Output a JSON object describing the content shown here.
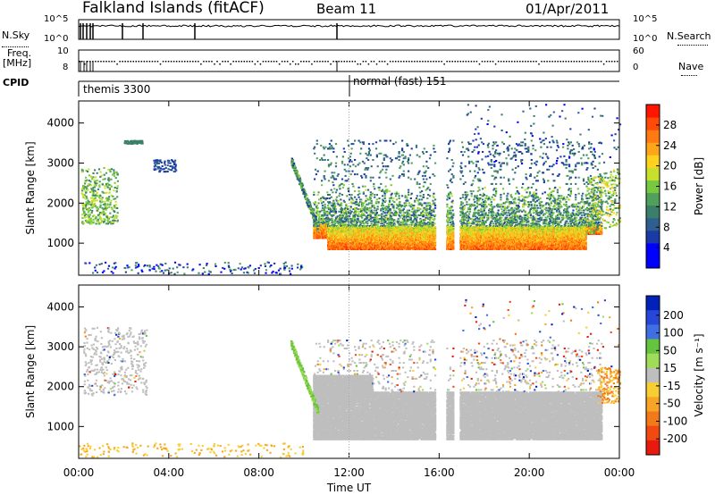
{
  "header": {
    "site": "Falkland Islands (fitACF)",
    "beam": "Beam 11",
    "date": "01/Apr/2011"
  },
  "left_labels": {
    "nsky": "N.Sky",
    "freq": "Freq.",
    "freq_unit": "[MHz]",
    "cpid": "CPID"
  },
  "right_labels": {
    "nsearch": "N.Search",
    "nave": "Nave"
  },
  "noise_axis": {
    "top": "10^5",
    "bottom": "10^0"
  },
  "freq_axis": {
    "top": "10",
    "bottom": "8"
  },
  "nave_axis": {
    "top": "60",
    "bottom": "0"
  },
  "cpid_labels": [
    "themis 3300",
    "normal (fast) 151"
  ],
  "colors": {
    "power": [
      "#0000ff",
      "#0000ff",
      "#1a3aa8",
      "#2f5f8f",
      "#3b7f6a",
      "#4fa05a",
      "#77c93f",
      "#c8e02c",
      "#ffd21f",
      "#ffa51a",
      "#ff7a10",
      "#ff4a08",
      "#ff1600"
    ],
    "velocity": [
      "#0022bb",
      "#2747d8",
      "#3f6fe3",
      "#65c33d",
      "#9fdc58",
      "#bebebe",
      "#f7cf34",
      "#f7a526",
      "#f27a1a",
      "#f04a10",
      "#e81a10"
    ]
  },
  "chart_data": [
    {
      "type": "heatmap",
      "title": "",
      "xlabel": "Time UT",
      "ylabel": "Slant Range [km]",
      "x_ticks": [
        "00:00",
        "04:00",
        "08:00",
        "12:00",
        "16:00",
        "20:00",
        "00:00"
      ],
      "y_ticks": [
        "1000",
        "2000",
        "3000",
        "4000"
      ],
      "ylim": [
        200,
        4550
      ],
      "colorbar": {
        "label": "Power [dB]",
        "ticks": [
          "4",
          "8",
          "12",
          "16",
          "20",
          "24",
          "28"
        ],
        "range": [
          0,
          32
        ]
      },
      "features": [
        {
          "desc": "E/F scatter",
          "time_range": [
            "00:00",
            "01:30"
          ],
          "range_km": [
            1500,
            2900
          ],
          "value": 16
        },
        {
          "desc": "main band",
          "time_range": [
            "10:30",
            "16:00"
          ],
          "range_km": [
            900,
            1500
          ],
          "value": 28
        },
        {
          "desc": "main band",
          "time_range": [
            "17:00",
            "23:00"
          ],
          "range_km": [
            850,
            1400
          ],
          "value": 26
        },
        {
          "desc": "upper band",
          "time_range": [
            "10:00",
            "22:30"
          ],
          "range_km": [
            1400,
            2600
          ],
          "value": 12
        }
      ]
    },
    {
      "type": "heatmap",
      "title": "",
      "xlabel": "Time UT",
      "ylabel": "Slant Range [km]",
      "x_ticks": [
        "00:00",
        "04:00",
        "08:00",
        "12:00",
        "16:00",
        "20:00",
        "00:00"
      ],
      "y_ticks": [
        "1000",
        "2000",
        "3000",
        "4000"
      ],
      "ylim": [
        200,
        4550
      ],
      "colorbar": {
        "label": "Velocity [m s⁻¹]",
        "ticks": [
          "200",
          "100",
          "50",
          "15",
          "-15",
          "-50",
          "-100",
          "-200"
        ],
        "range": [
          -250,
          250
        ]
      },
      "features": [
        {
          "desc": "ground scatter",
          "time_range": [
            "10:30",
            "23:00"
          ],
          "range_km": [
            700,
            2000
          ],
          "value": 0
        },
        {
          "desc": "positive velocity",
          "time_range": [
            "09:30",
            "10:40"
          ],
          "range_km": [
            1200,
            3000
          ],
          "value": 30
        },
        {
          "desc": "negative velocity",
          "time_range": [
            "23:00",
            "00:00"
          ],
          "range_km": [
            1600,
            2500
          ],
          "value": -60
        }
      ]
    }
  ]
}
